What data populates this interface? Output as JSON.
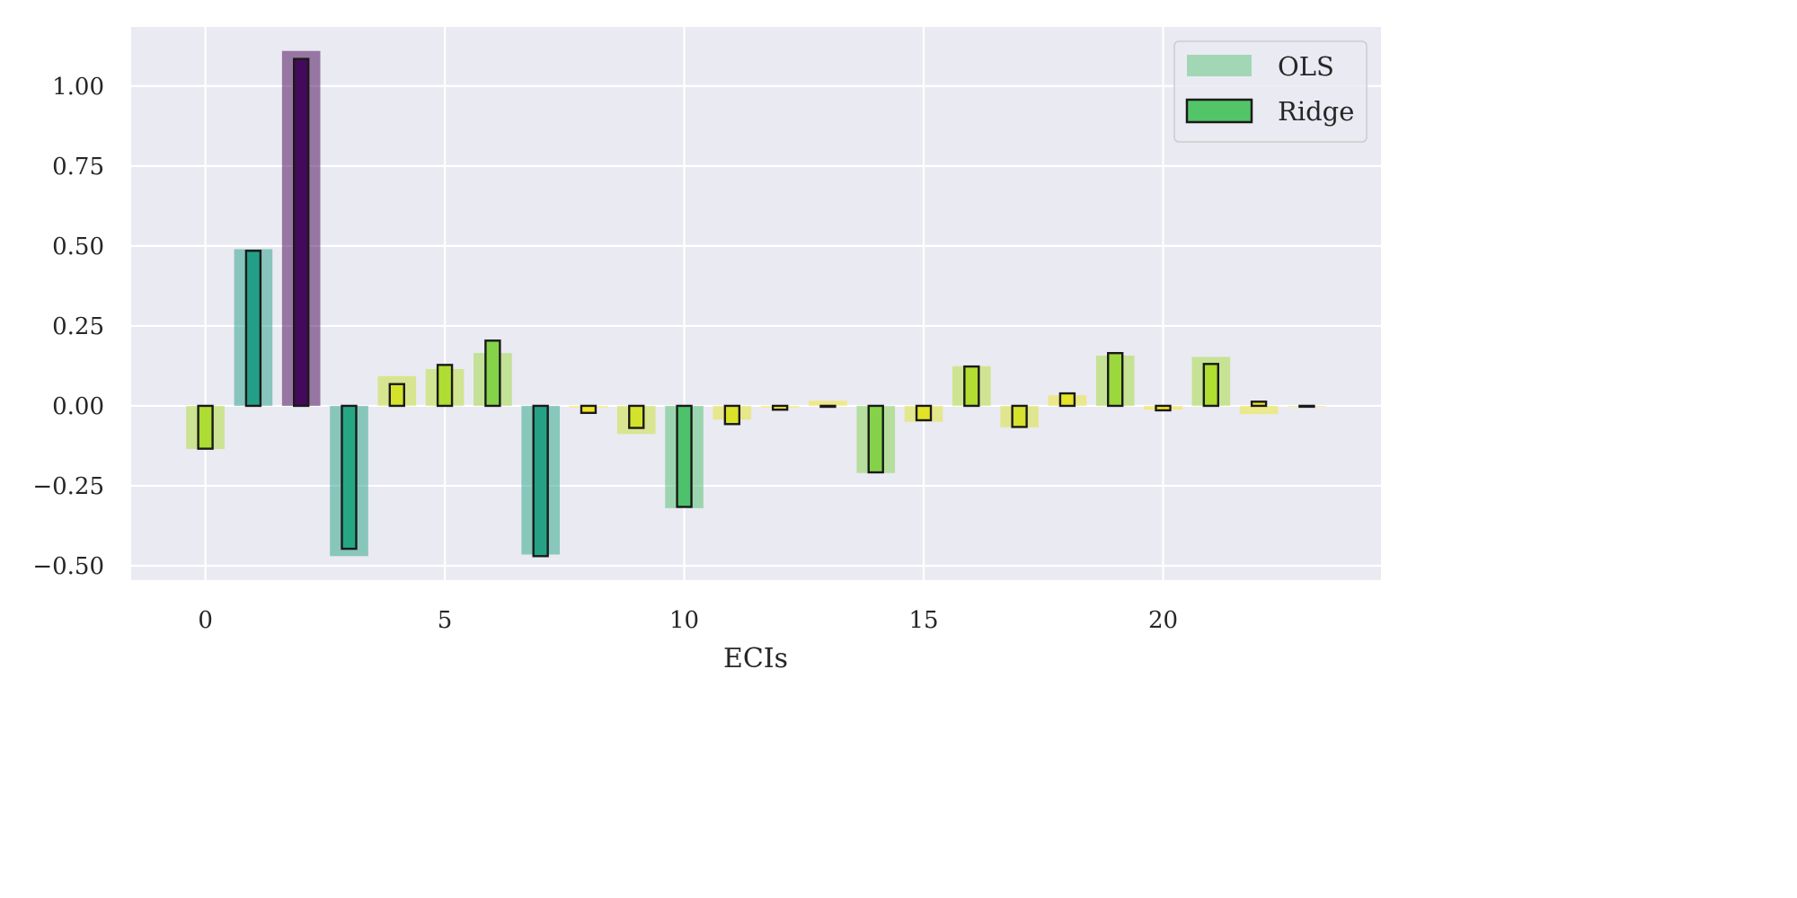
{
  "chart_data": {
    "type": "bar",
    "xlabel": "ECIs",
    "ylabel": "",
    "title": "",
    "xlim": [
      -1.55,
      24.55
    ],
    "ylim": [
      -0.545,
      1.185
    ],
    "xticks": [
      0,
      5,
      10,
      15,
      20
    ],
    "xtick_labels": [
      "0",
      "5",
      "10",
      "15",
      "20"
    ],
    "yticks": [
      -0.5,
      -0.25,
      0.0,
      0.25,
      0.5,
      0.75,
      1.0
    ],
    "ytick_labels": [
      "−0.50",
      "−0.25",
      "0.00",
      "0.25",
      "0.50",
      "0.75",
      "1.00"
    ],
    "grid": true,
    "legend_position": "top-right",
    "x": [
      0,
      1,
      2,
      3,
      4,
      5,
      6,
      7,
      8,
      9,
      10,
      11,
      12,
      13,
      14,
      15,
      16,
      17,
      18,
      19,
      20,
      21,
      22,
      23
    ],
    "series": [
      {
        "name": "OLS",
        "style": "wide translucent bars",
        "values": [
          -0.135,
          0.49,
          1.11,
          -0.47,
          0.093,
          0.115,
          0.165,
          -0.465,
          -0.005,
          -0.088,
          -0.32,
          -0.043,
          -0.005,
          0.016,
          -0.21,
          -0.05,
          0.124,
          -0.067,
          0.033,
          0.157,
          -0.012,
          0.153,
          -0.026,
          -0.003
        ]
      },
      {
        "name": "Ridge",
        "style": "narrow outlined bars",
        "values": [
          -0.134,
          0.485,
          1.085,
          -0.447,
          0.068,
          0.128,
          0.204,
          -0.47,
          -0.022,
          -0.069,
          -0.316,
          -0.057,
          -0.012,
          -0.003,
          -0.208,
          -0.045,
          0.123,
          -0.066,
          0.039,
          0.165,
          -0.014,
          0.131,
          0.013,
          -0.002
        ]
      }
    ],
    "colors": {
      "plot_background": "#eaeaf2",
      "grid": "#ffffff",
      "bar_outline": "#1a1a1a",
      "colormap": "viridis"
    }
  },
  "legend": {
    "ols_label": "OLS",
    "ridge_label": "Ridge",
    "ols_color": "#4cc26c",
    "ridge_color": "#52c569"
  }
}
